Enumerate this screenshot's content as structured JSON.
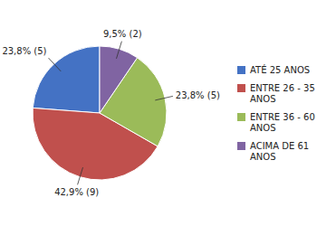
{
  "chart_data": {
    "type": "pie",
    "categories": [
      "ATÉ 25 ANOS",
      "ENTRE 26 - 35\nANOS",
      "ENTRE 36 - 60\nANOS",
      "ACIMA DE 61\nANOS"
    ],
    "values": [
      23.8,
      42.9,
      23.8,
      9.5
    ],
    "value_labels": [
      "23,8% (5)",
      "42,9% (9)",
      "23,8% (5)",
      "9,5% (2)"
    ],
    "colors": [
      "#4472C4",
      "#C0504D",
      "#9BBB59",
      "#8064A2"
    ],
    "data_labels": true,
    "legend": "right"
  }
}
